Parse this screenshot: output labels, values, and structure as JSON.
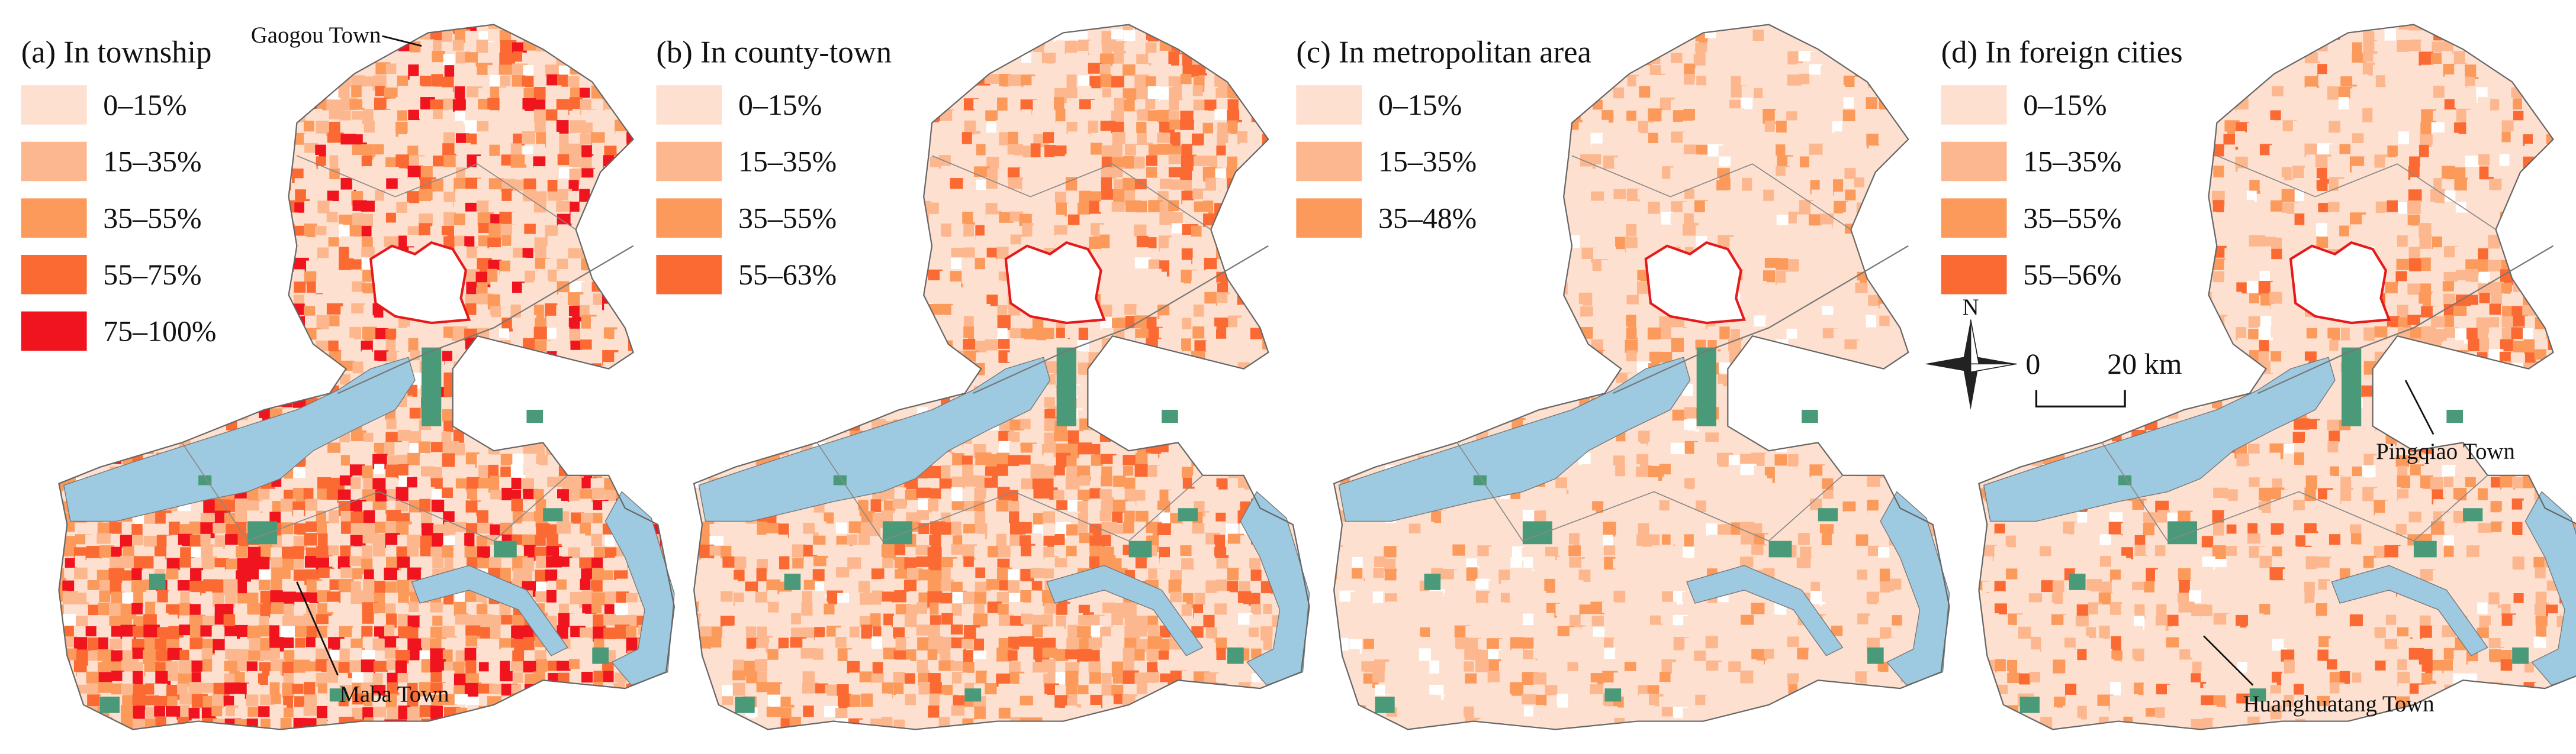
{
  "panels": [
    {
      "title": "(a) In township",
      "legend": [
        {
          "label": "0–15%",
          "color": "#fde0cf"
        },
        {
          "label": "15–35%",
          "color": "#fdb78e"
        },
        {
          "label": "35–55%",
          "color": "#fc9a5c"
        },
        {
          "label": "55–75%",
          "color": "#fb6a33"
        },
        {
          "label": "75–100%",
          "color": "#f0141e"
        }
      ],
      "annotations": [
        "Gaogou Town",
        "Maba Town"
      ]
    },
    {
      "title": "(b) In county-town",
      "legend": [
        {
          "label": "0–15%",
          "color": "#fde0cf"
        },
        {
          "label": "15–35%",
          "color": "#fdb78e"
        },
        {
          "label": "35–55%",
          "color": "#fc9a5c"
        },
        {
          "label": "55–63%",
          "color": "#fb6a33"
        }
      ],
      "annotations": []
    },
    {
      "title": "(c) In metropolitan area",
      "legend": [
        {
          "label": "0–15%",
          "color": "#fde0cf"
        },
        {
          "label": "15–35%",
          "color": "#fdb78e"
        },
        {
          "label": "35–48%",
          "color": "#fc9a5c"
        }
      ],
      "annotations": []
    },
    {
      "title": "(d) In foreign cities",
      "legend": [
        {
          "label": "0–15%",
          "color": "#fde0cf"
        },
        {
          "label": "15–35%",
          "color": "#fdb78e"
        },
        {
          "label": "35–55%",
          "color": "#fc9a5c"
        },
        {
          "label": "55–56%",
          "color": "#fb6a33"
        }
      ],
      "annotations": [
        "Pingqiao Town",
        "Huanghuatang Town"
      ]
    }
  ],
  "north": "N",
  "scale": {
    "start": "0",
    "end": "20 km"
  }
}
